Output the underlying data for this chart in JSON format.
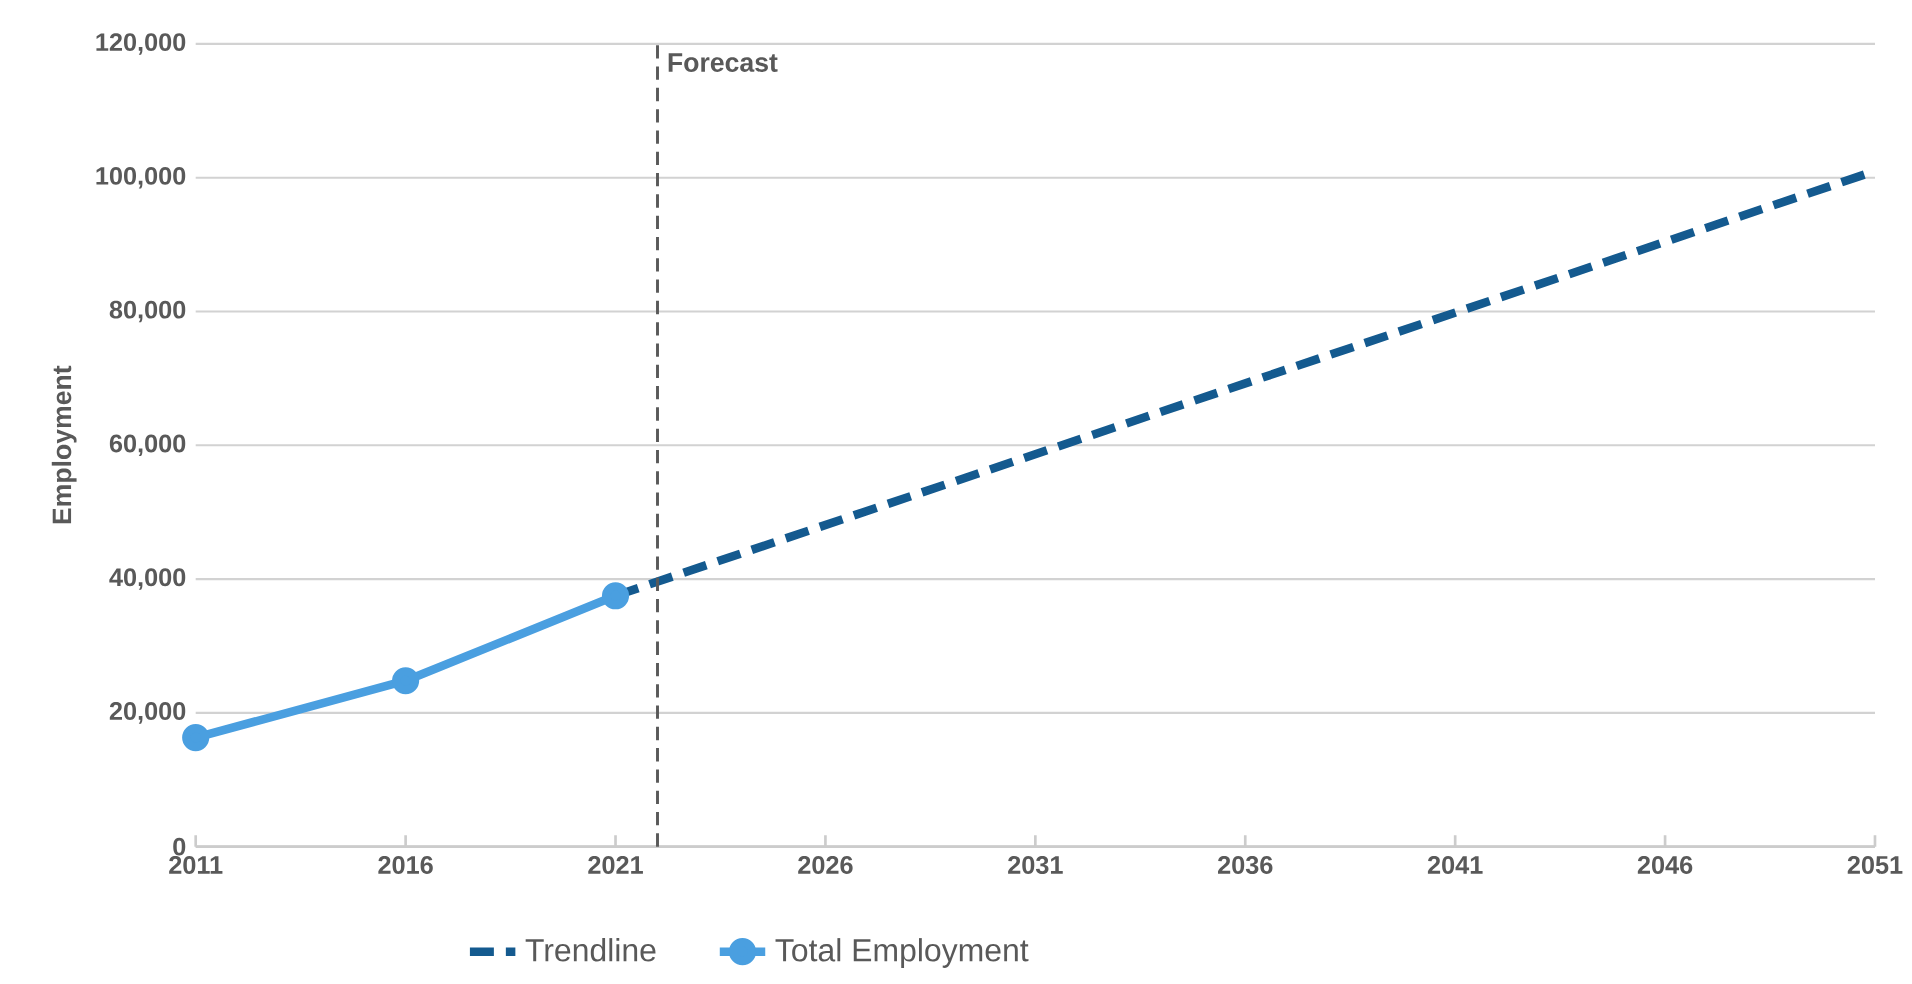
{
  "chart_data": {
    "type": "line",
    "ylabel": "Employment",
    "xlim": [
      2011,
      2051
    ],
    "xticks": [
      2011,
      2016,
      2021,
      2026,
      2031,
      2036,
      2041,
      2046,
      2051
    ],
    "ylim": [
      0,
      120000
    ],
    "yticks": [
      0,
      {
        "value": 20000,
        "label": "20,000"
      },
      {
        "value": 40000,
        "label": "40,000"
      },
      {
        "value": 60000,
        "label": "60,000"
      },
      {
        "value": 80000,
        "label": "80,000"
      },
      {
        "value": 100000,
        "label": "100,000"
      },
      {
        "value": 120000,
        "label": "120,000"
      }
    ],
    "grid": "y",
    "legend": "bottom",
    "ref_lines": [
      {
        "axis": "x",
        "value": 2022,
        "label": "Forecast",
        "color": "#595959",
        "line_style": "dashed"
      }
    ],
    "series": [
      {
        "name": "Trendline",
        "color": "#145a8f",
        "line_style": "dashed",
        "marker": "none",
        "x": [
          2021,
          2051
        ],
        "values": [
          37500,
          101000
        ]
      },
      {
        "name": "Total Employment",
        "color": "#4a9fe0",
        "line_style": "solid",
        "marker": "circle",
        "x": [
          2011,
          2016,
          2021
        ],
        "values": [
          16300,
          24800,
          37500
        ]
      }
    ]
  }
}
